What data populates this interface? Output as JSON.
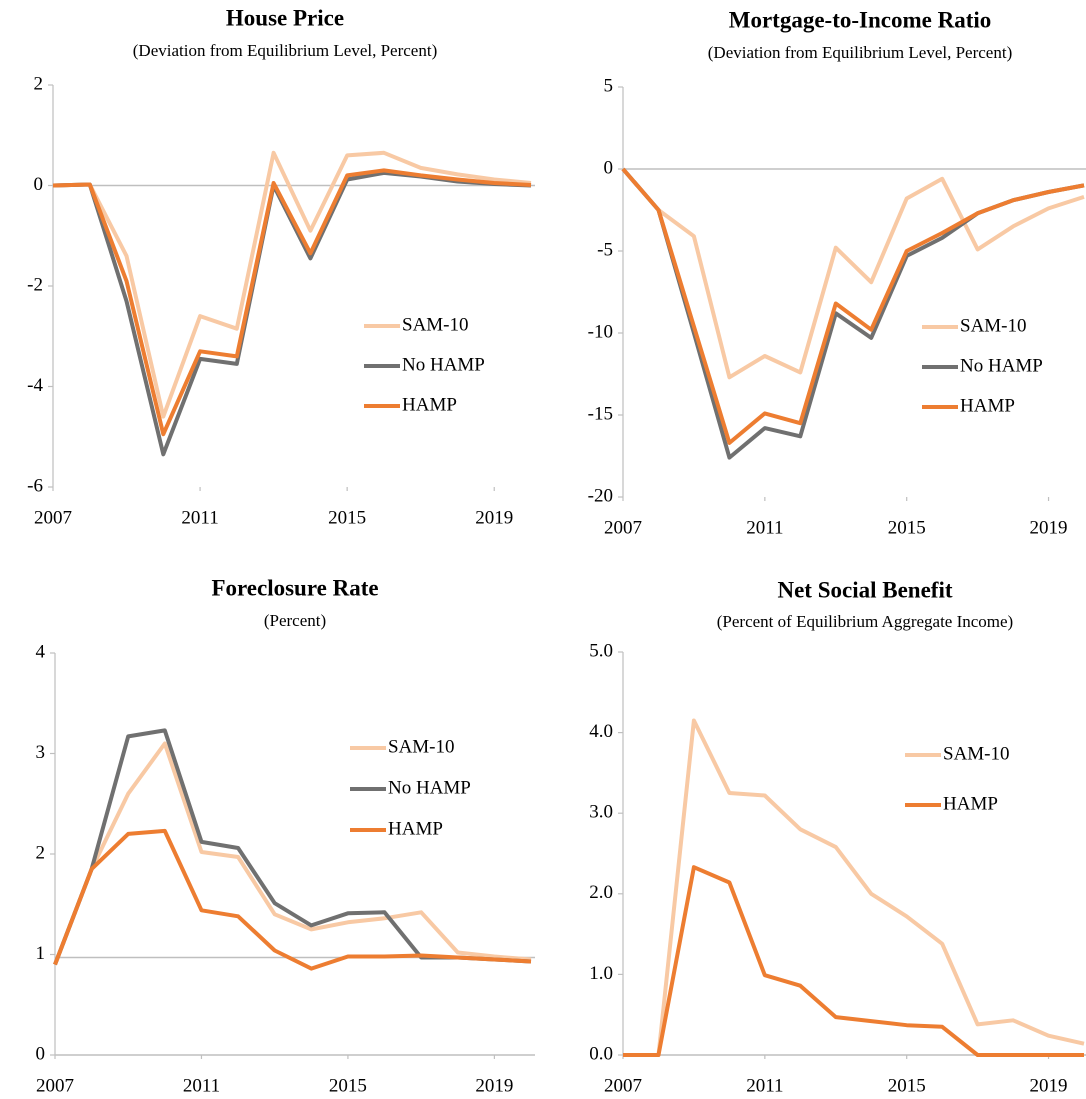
{
  "chart_data": [
    {
      "type": "line",
      "title": "House Price",
      "subtitle": "(Deviation  from  Equilibrium  Level,  Percent)",
      "x": [
        2007,
        2008,
        2009,
        2010,
        2011,
        2012,
        2013,
        2014,
        2015,
        2016,
        2017,
        2018,
        2019,
        2020
      ],
      "xlim": [
        2007,
        2020
      ],
      "xticks": [
        2007,
        2011,
        2015,
        2019
      ],
      "ylim": [
        -6,
        2
      ],
      "yticks": [
        -6,
        -4,
        -2,
        0,
        2
      ],
      "hlines": [
        0
      ],
      "grid": false,
      "legend": "center right",
      "series": [
        {
          "name": "SAM-10",
          "color": "#f8c9a4",
          "values": [
            0,
            0.02,
            -1.4,
            -4.6,
            -2.6,
            -2.85,
            0.65,
            -0.9,
            0.6,
            0.65,
            0.35,
            0.22,
            0.12,
            0.05
          ]
        },
        {
          "name": "No HAMP",
          "color": "#707070",
          "values": [
            0,
            0.02,
            -2.3,
            -5.35,
            -3.45,
            -3.55,
            0,
            -1.45,
            0.12,
            0.25,
            0.18,
            0.08,
            0.03,
            0
          ]
        },
        {
          "name": "HAMP",
          "color": "#ed7d31",
          "values": [
            0,
            0.02,
            -1.9,
            -4.95,
            -3.3,
            -3.4,
            0.05,
            -1.35,
            0.2,
            0.3,
            0.2,
            0.12,
            0.05,
            0.01
          ]
        }
      ]
    },
    {
      "type": "line",
      "title": "Mortgage-to-Income Ratio",
      "subtitle": "(Deviation  from  Equilibrium  Level,  Percent)",
      "x": [
        2007,
        2008,
        2009,
        2010,
        2011,
        2012,
        2013,
        2014,
        2015,
        2016,
        2017,
        2018,
        2019,
        2020
      ],
      "xlim": [
        2007,
        2020
      ],
      "xticks": [
        2007,
        2011,
        2015,
        2019
      ],
      "ylim": [
        -20,
        5
      ],
      "yticks": [
        -20,
        -15,
        -10,
        -5,
        0,
        5
      ],
      "hlines": [
        0
      ],
      "grid": false,
      "legend": "center right",
      "series": [
        {
          "name": "SAM-10",
          "color": "#f8c9a4",
          "values": [
            0,
            -2.5,
            -4.1,
            -12.7,
            -11.4,
            -12.4,
            -4.8,
            -6.9,
            -1.8,
            -0.6,
            -4.9,
            -3.5,
            -2.4,
            -1.7
          ]
        },
        {
          "name": "No HAMP",
          "color": "#707070",
          "values": [
            0,
            -2.5,
            -10,
            -17.6,
            -15.8,
            -16.3,
            -8.8,
            -10.3,
            -5.3,
            -4.2,
            -2.7,
            -1.9,
            -1.4,
            -1
          ]
        },
        {
          "name": "HAMP",
          "color": "#ed7d31",
          "values": [
            0,
            -2.5,
            -9.6,
            -16.7,
            -14.9,
            -15.5,
            -8.2,
            -9.8,
            -5,
            -3.9,
            -2.7,
            -1.9,
            -1.4,
            -1
          ]
        }
      ]
    },
    {
      "type": "line",
      "title": "Foreclosure Rate",
      "subtitle": "(Percent)",
      "x": [
        2007,
        2008,
        2009,
        2010,
        2011,
        2012,
        2013,
        2014,
        2015,
        2016,
        2017,
        2018,
        2019,
        2020
      ],
      "xlim": [
        2007,
        2020
      ],
      "xticks": [
        2007,
        2011,
        2015,
        2019
      ],
      "ylim": [
        0,
        4
      ],
      "yticks": [
        0,
        1,
        2,
        3,
        4
      ],
      "hlines": [
        0,
        0.97
      ],
      "grid": false,
      "legend": "upper right",
      "series": [
        {
          "name": "SAM-10",
          "color": "#f8c9a4",
          "values": [
            0.9,
            1.85,
            2.6,
            3.1,
            2.02,
            1.97,
            1.4,
            1.25,
            1.32,
            1.36,
            1.42,
            1.02,
            0.98,
            0.95
          ]
        },
        {
          "name": "No HAMP",
          "color": "#707070",
          "values": [
            0.9,
            1.85,
            3.17,
            3.23,
            2.12,
            2.06,
            1.51,
            1.29,
            1.41,
            1.42,
            0.97,
            0.97,
            0.95,
            0.93
          ]
        },
        {
          "name": "HAMP",
          "color": "#ed7d31",
          "values": [
            0.9,
            1.85,
            2.2,
            2.23,
            1.44,
            1.38,
            1.04,
            0.86,
            0.98,
            0.98,
            0.99,
            0.97,
            0.95,
            0.93
          ]
        }
      ]
    },
    {
      "type": "line",
      "title": "Net Social Benefit",
      "subtitle": "(Percent of Equilibrium Aggregate  Income)",
      "x": [
        2007,
        2008,
        2009,
        2010,
        2011,
        2012,
        2013,
        2014,
        2015,
        2016,
        2017,
        2018,
        2019,
        2020
      ],
      "xlim": [
        2007,
        2020
      ],
      "xticks": [
        2007,
        2011,
        2015,
        2019
      ],
      "ylim": [
        0,
        5
      ],
      "yticks": [
        {
          "value": 0,
          "label": "0.0"
        },
        {
          "value": 1,
          "label": "1.0"
        },
        {
          "value": 2,
          "label": "2.0"
        },
        {
          "value": 3,
          "label": "3.0"
        },
        {
          "value": 4,
          "label": "4.0"
        },
        {
          "value": 5,
          "label": "5.0"
        }
      ],
      "hlines": [
        0
      ],
      "grid": false,
      "legend": "upper right",
      "series": [
        {
          "name": "SAM-10",
          "color": "#f8c9a4",
          "values": [
            0,
            0,
            4.15,
            3.25,
            3.22,
            2.8,
            2.58,
            2,
            1.72,
            1.38,
            0.38,
            0.43,
            0.24,
            0.14
          ]
        },
        {
          "name": "HAMP",
          "color": "#ed7d31",
          "values": [
            0,
            0,
            2.33,
            2.14,
            0.99,
            0.86,
            0.47,
            0.42,
            0.37,
            0.35,
            0,
            0,
            0,
            0
          ]
        }
      ]
    }
  ]
}
